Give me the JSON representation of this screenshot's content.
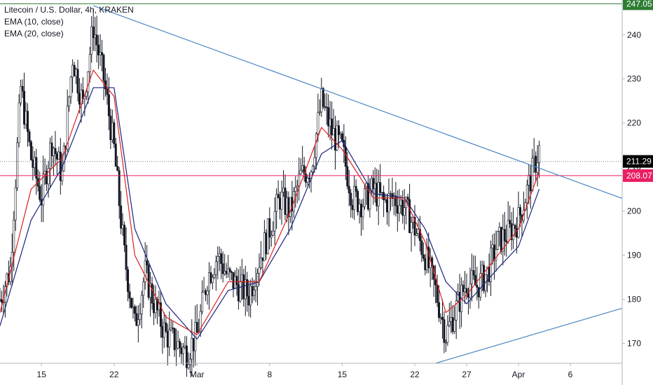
{
  "legend": {
    "title": "Litecoin / U.S. Dollar, 4h, KRAKEN",
    "ema10": "EMA (10, close)",
    "ema20": "EMA (20, close)"
  },
  "colors": {
    "background": "#ffffff",
    "candle_up": "#131722",
    "candle_down": "#131722",
    "ema10": "#e02020",
    "ema20": "#1a237e",
    "trendline": "#4a86c5",
    "resistance_247": "#2e7d32",
    "support_208": "#e91e63",
    "last_price": "#000000",
    "axis_text": "#131722"
  },
  "chart_data": {
    "type": "candlestick",
    "title": "Litecoin / U.S. Dollar, 4h, KRAKEN",
    "xlabel": "",
    "ylabel": "",
    "ylim": [
      165.5,
      247.9
    ],
    "y_ticks": [
      170,
      180,
      190,
      200,
      210,
      220,
      230,
      240
    ],
    "x_ticks": [
      {
        "label": "15",
        "date": "2020-02-15"
      },
      {
        "label": "22",
        "date": "2020-02-22"
      },
      {
        "label": "Mar",
        "date": "2020-03-01"
      },
      {
        "label": "8",
        "date": "2020-03-08"
      },
      {
        "label": "15",
        "date": "2020-03-15"
      },
      {
        "label": "22",
        "date": "2020-03-22"
      },
      {
        "label": "27",
        "date": "2020-03-27"
      },
      {
        "label": "Apr",
        "date": "2020-04-01"
      },
      {
        "label": "6",
        "date": "2020-04-06"
      }
    ],
    "xlim": [
      "2020-02-11",
      "2020-04-11"
    ],
    "close_series": [
      [
        "2020-02-11",
        180
      ],
      [
        "2020-02-12",
        187
      ],
      [
        "2020-02-13",
        228
      ],
      [
        "2020-02-14",
        212
      ],
      [
        "2020-02-15",
        203
      ],
      [
        "2020-02-16",
        216
      ],
      [
        "2020-02-17",
        208
      ],
      [
        "2020-02-18",
        235
      ],
      [
        "2020-02-19",
        224
      ],
      [
        "2020-02-20",
        242
      ],
      [
        "2020-02-21",
        230
      ],
      [
        "2020-02-22",
        214
      ],
      [
        "2020-02-23",
        190
      ],
      [
        "2020-02-24",
        174
      ],
      [
        "2020-02-25",
        186
      ],
      [
        "2020-02-26",
        178
      ],
      [
        "2020-02-27",
        172
      ],
      [
        "2020-02-28",
        170
      ],
      [
        "2020-02-29",
        168
      ],
      [
        "2020-03-01",
        172
      ],
      [
        "2020-03-02",
        185
      ],
      [
        "2020-03-03",
        190
      ],
      [
        "2020-03-04",
        185
      ],
      [
        "2020-03-05",
        183
      ],
      [
        "2020-03-06",
        181
      ],
      [
        "2020-03-07",
        189
      ],
      [
        "2020-03-08",
        196
      ],
      [
        "2020-03-09",
        203
      ],
      [
        "2020-03-10",
        200
      ],
      [
        "2020-03-11",
        208
      ],
      [
        "2020-03-12",
        210
      ],
      [
        "2020-03-13",
        225
      ],
      [
        "2020-03-14",
        218
      ],
      [
        "2020-03-15",
        214
      ],
      [
        "2020-03-16",
        203
      ],
      [
        "2020-03-17",
        202
      ],
      [
        "2020-03-18",
        205
      ],
      [
        "2020-03-19",
        202
      ],
      [
        "2020-03-20",
        203
      ],
      [
        "2020-03-21",
        201
      ],
      [
        "2020-03-22",
        196
      ],
      [
        "2020-03-23",
        190
      ],
      [
        "2020-03-24",
        182
      ],
      [
        "2020-03-25",
        172
      ],
      [
        "2020-03-26",
        178
      ],
      [
        "2020-03-27",
        184
      ],
      [
        "2020-03-28",
        183
      ],
      [
        "2020-03-29",
        186
      ],
      [
        "2020-03-30",
        193
      ],
      [
        "2020-03-31",
        195
      ],
      [
        "2020-04-01",
        198
      ],
      [
        "2020-04-02",
        206
      ],
      [
        "2020-04-03",
        214
      ]
    ],
    "ema10": [
      [
        "2020-02-11",
        177
      ],
      [
        "2020-02-14",
        205
      ],
      [
        "2020-02-17",
        212
      ],
      [
        "2020-02-20",
        232
      ],
      [
        "2020-02-22",
        226
      ],
      [
        "2020-02-24",
        190
      ],
      [
        "2020-02-27",
        176
      ],
      [
        "2020-03-01",
        172
      ],
      [
        "2020-03-04",
        184
      ],
      [
        "2020-03-07",
        184
      ],
      [
        "2020-03-10",
        200
      ],
      [
        "2020-03-13",
        219
      ],
      [
        "2020-03-15",
        214
      ],
      [
        "2020-03-18",
        203
      ],
      [
        "2020-03-21",
        203
      ],
      [
        "2020-03-23",
        193
      ],
      [
        "2020-03-25",
        177
      ],
      [
        "2020-03-27",
        181
      ],
      [
        "2020-03-30",
        190
      ],
      [
        "2020-04-01",
        196
      ],
      [
        "2020-04-03",
        209
      ]
    ],
    "ema20": [
      [
        "2020-02-11",
        174
      ],
      [
        "2020-02-14",
        198
      ],
      [
        "2020-02-17",
        210
      ],
      [
        "2020-02-20",
        228
      ],
      [
        "2020-02-22",
        228
      ],
      [
        "2020-02-24",
        196
      ],
      [
        "2020-02-27",
        179
      ],
      [
        "2020-03-01",
        171
      ],
      [
        "2020-03-04",
        182
      ],
      [
        "2020-03-07",
        184
      ],
      [
        "2020-03-10",
        196
      ],
      [
        "2020-03-13",
        213
      ],
      [
        "2020-03-15",
        216
      ],
      [
        "2020-03-18",
        204
      ],
      [
        "2020-03-21",
        203
      ],
      [
        "2020-03-23",
        196
      ],
      [
        "2020-03-25",
        184
      ],
      [
        "2020-03-27",
        179
      ],
      [
        "2020-03-30",
        187
      ],
      [
        "2020-04-01",
        192
      ],
      [
        "2020-04-03",
        205
      ]
    ],
    "horizontal_lines": [
      {
        "price": 247.05,
        "label": "247.05",
        "color": "#2e7d32"
      },
      {
        "price": 208.07,
        "label": "208.07",
        "color": "#e91e63"
      }
    ],
    "last_price": {
      "price": 211.29,
      "label": "211.29"
    },
    "trendlines": [
      {
        "from": [
          "2020-02-20",
          246.6
        ],
        "to": [
          "2020-04-11",
          202.9
        ]
      },
      {
        "from": [
          "2020-03-24",
          165.5
        ],
        "to": [
          "2020-04-11",
          178.0
        ]
      }
    ],
    "grid": false,
    "legend_position": "top-left"
  }
}
